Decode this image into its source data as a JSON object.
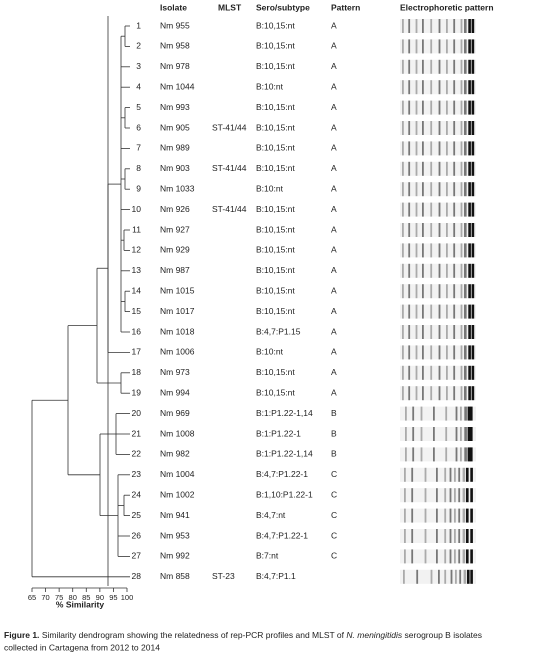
{
  "header": {
    "isolate": "Isolate",
    "mlst": "MLST",
    "serotype": "Sero/subtype",
    "pattern": "Pattern",
    "electro": "Electrophoretic pattern"
  },
  "rows": [
    {
      "number": "1",
      "isolate": "Nm 955",
      "serotype": "B:10,15:nt",
      "pattern": "A"
    },
    {
      "number": "2",
      "isolate": "Nm 958",
      "serotype": "B:10,15:nt",
      "pattern": "A"
    },
    {
      "number": "3",
      "isolate": "Nm 978",
      "serotype": "B:10,15:nt",
      "pattern": "A"
    },
    {
      "number": "4",
      "isolate": "Nm 1044",
      "serotype": "B:10:nt",
      "pattern": "A"
    },
    {
      "number": "5",
      "isolate": "Nm 993",
      "serotype": "B:10,15:nt",
      "pattern": "A"
    },
    {
      "number": "6",
      "isolate": "Nm 905",
      "mlst": "ST-41/44",
      "serotype": "B:10,15:nt",
      "pattern": "A"
    },
    {
      "number": "7",
      "isolate": "Nm 989",
      "serotype": "B:10,15:nt",
      "pattern": "A"
    },
    {
      "number": "8",
      "isolate": "Nm 903",
      "mlst": "ST-41/44",
      "serotype": "B:10,15:nt",
      "pattern": "A"
    },
    {
      "number": "9",
      "isolate": "Nm 1033",
      "serotype": "B:10:nt",
      "pattern": "A"
    },
    {
      "number": "10",
      "isolate": "Nm 926",
      "mlst": "ST-41/44",
      "serotype": "B:10,15:nt",
      "pattern": "A"
    },
    {
      "number": "11",
      "isolate": "Nm 927",
      "serotype": "B:10,15:nt",
      "pattern": "A"
    },
    {
      "number": "12",
      "isolate": "Nm 929",
      "serotype": "B:10,15:nt",
      "pattern": "A"
    },
    {
      "number": "13",
      "isolate": "Nm 987",
      "serotype": "B:10,15:nt",
      "pattern": "A"
    },
    {
      "number": "14",
      "isolate": "Nm 1015",
      "serotype": "B:10,15:nt",
      "pattern": "A"
    },
    {
      "number": "15",
      "isolate": "Nm 1017",
      "serotype": "B:10,15:nt",
      "pattern": "A"
    },
    {
      "number": "16",
      "isolate": "Nm 1018",
      "serotype": "B:4,7:P1.15",
      "pattern": "A"
    },
    {
      "number": "17",
      "isolate": "Nm 1006",
      "serotype": "B:10:nt",
      "pattern": "A"
    },
    {
      "number": "18",
      "isolate": "Nm 973",
      "serotype": "B:10,15:nt",
      "pattern": "A"
    },
    {
      "number": "19",
      "isolate": "Nm 994",
      "serotype": "B:10,15:nt",
      "pattern": "A"
    },
    {
      "number": "20",
      "isolate": "Nm 969",
      "serotype": "B:1:P1.22-1,14",
      "pattern": "B"
    },
    {
      "number": "21",
      "isolate": "Nm 1008",
      "serotype": "B:1:P1.22-1",
      "pattern": "B"
    },
    {
      "number": "22",
      "isolate": "Nm 982",
      "serotype": "B:1:P1.22-1,14",
      "pattern": "B"
    },
    {
      "number": "23",
      "isolate": "Nm 1004",
      "serotype": "B:4,7:P1.22-1",
      "pattern": "C"
    },
    {
      "number": "24",
      "isolate": "Nm 1002",
      "serotype": "B:1,10:P1.22-1",
      "pattern": "C"
    },
    {
      "number": "25",
      "isolate": "Nm 941",
      "serotype": "B:4,7:nt",
      "pattern": "C"
    },
    {
      "number": "26",
      "isolate": "Nm 953",
      "serotype": "B:4,7:P1.22-1",
      "pattern": "C"
    },
    {
      "number": "27",
      "isolate": "Nm 992",
      "serotype": "B:7:nt",
      "pattern": "C"
    },
    {
      "number": "28",
      "isolate": "Nm 858",
      "mlst": "ST-23",
      "serotype": "B:4,7:P1.1"
    }
  ],
  "axis": {
    "label": "% Similarity",
    "lim": [
      65,
      100
    ],
    "ticks": [
      65,
      70,
      75,
      80,
      85,
      90,
      95,
      100
    ]
  },
  "caption": {
    "label": "Figure 1.",
    "text_before": "Similarity dendrogram showing the relatedness of rep-PCR profiles and MLST of",
    "species": "N. meningitidis",
    "text_after": "serogroup B isolates",
    "line2": "collected in Cartagena from 2012 to 2014"
  }
}
